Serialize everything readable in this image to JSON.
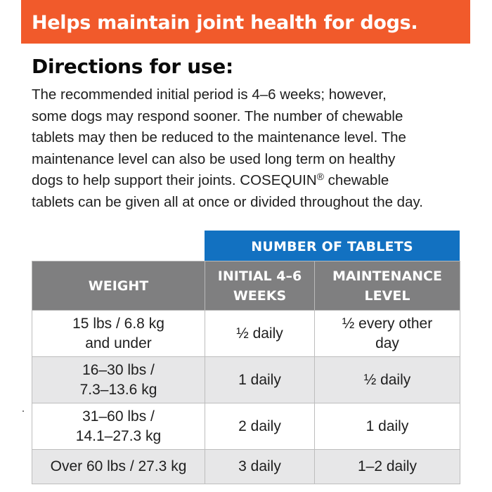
{
  "banner": {
    "text": "Helps maintain joint health for dogs.",
    "color": "#f15a2b"
  },
  "directions": {
    "heading": "Directions for use:",
    "lines": [
      "The recommended initial period is 4–6 weeks; however,",
      "some dogs may respond sooner. The number of chewable",
      "tablets may then be reduced to the maintenance level. The",
      "maintenance level can also be used long term on healthy",
      "dogs to help support their joints. COSEQUIN",
      "tablets can be given all at once or divided throughout the day."
    ],
    "brand_mark": "®",
    "line5_suffix": " chewable"
  },
  "table": {
    "group_header": "NUMBER OF TABLETS",
    "group_header_color": "#1271c1",
    "header_color": "#7f7f80",
    "columns": [
      {
        "label_line1": "WEIGHT",
        "label_line2": ""
      },
      {
        "label_line1": "INITIAL 4–6",
        "label_line2": "WEEKS"
      },
      {
        "label_line1": "MAINTENANCE",
        "label_line2": "LEVEL"
      }
    ],
    "rows": [
      {
        "weight_line1": "15 lbs / 6.8 kg",
        "weight_line2": "and under",
        "initial": "½ daily",
        "maint_line1": "½ every other",
        "maint_line2": "day"
      },
      {
        "weight_line1": "16–30 lbs /",
        "weight_line2": "7.3–13.6 kg",
        "initial": "1 daily",
        "maint_line1": "½ daily",
        "maint_line2": ""
      },
      {
        "weight_line1": "31–60 lbs /",
        "weight_line2": "14.1–27.3 kg",
        "initial": "2 daily",
        "maint_line1": "1 daily",
        "maint_line2": ""
      },
      {
        "weight_line1": "Over 60 lbs / 27.3 kg",
        "weight_line2": "",
        "initial": "3 daily",
        "maint_line1": "1–2 daily",
        "maint_line2": ""
      }
    ]
  }
}
